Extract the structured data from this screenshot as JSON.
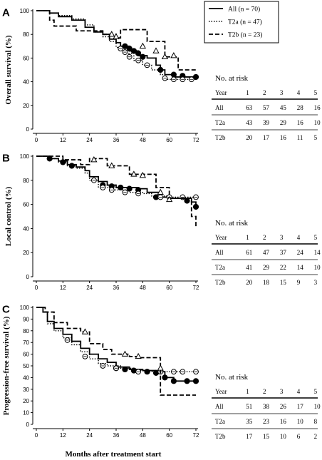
{
  "legend": [
    {
      "label": "All  (n = 70)",
      "style": "solid"
    },
    {
      "label": "T2a  (n = 47)",
      "style": "dotted"
    },
    {
      "label": "T2b  (n = 23)",
      "style": "dashed"
    }
  ],
  "chart_data": [
    {
      "type": "line",
      "panel": "A",
      "ylabel": "Overall survival (%)",
      "xlabel": "",
      "xlim": [
        0,
        72
      ],
      "ylim": [
        0,
        100
      ],
      "xticks": [
        "0",
        "12",
        "24",
        "36",
        "48",
        "60",
        "72"
      ],
      "yticks": [
        "0",
        "20",
        "40",
        "60",
        "80",
        "100"
      ],
      "series": [
        {
          "name": "All  (n = 70)",
          "style": "solid",
          "steps": [
            [
              0,
              100
            ],
            [
              4,
              100
            ],
            [
              6,
              98
            ],
            [
              10,
              95
            ],
            [
              16,
              92
            ],
            [
              22,
              86
            ],
            [
              26,
              82
            ],
            [
              30,
              80
            ],
            [
              33,
              76
            ],
            [
              36,
              73
            ],
            [
              38,
              70
            ],
            [
              42,
              66
            ],
            [
              46,
              62
            ],
            [
              50,
              60
            ],
            [
              54,
              54
            ],
            [
              56,
              50
            ],
            [
              58,
              46
            ],
            [
              62,
              44
            ],
            [
              66,
              44
            ],
            [
              72,
              44
            ]
          ],
          "censors": [
            [
              40,
              70
            ],
            [
              42,
              68
            ],
            [
              44,
              66
            ],
            [
              46,
              64
            ],
            [
              48,
              61
            ],
            [
              56,
              50
            ],
            [
              62,
              46
            ],
            [
              66,
              45
            ],
            [
              72,
              44
            ]
          ]
        },
        {
          "name": "T2a  (n = 47)",
          "style": "dotted",
          "steps": [
            [
              0,
              100
            ],
            [
              4,
              100
            ],
            [
              6,
              98
            ],
            [
              10,
              96
            ],
            [
              16,
              93
            ],
            [
              22,
              88
            ],
            [
              26,
              82
            ],
            [
              30,
              78
            ],
            [
              33,
              74
            ],
            [
              36,
              69
            ],
            [
              40,
              64
            ],
            [
              44,
              58
            ],
            [
              48,
              54
            ],
            [
              52,
              50
            ],
            [
              56,
              46
            ],
            [
              58,
              42
            ],
            [
              72,
              42
            ]
          ],
          "censors": [
            [
              38,
              68
            ],
            [
              40,
              65
            ],
            [
              42,
              61
            ],
            [
              46,
              58
            ],
            [
              50,
              54
            ],
            [
              58,
              43
            ],
            [
              62,
              42
            ],
            [
              66,
              42
            ],
            [
              70,
              42
            ]
          ]
        },
        {
          "name": "T2b  (n = 23)",
          "style": "dashed",
          "steps": [
            [
              0,
              100
            ],
            [
              4,
              100
            ],
            [
              6,
              92
            ],
            [
              8,
              87
            ],
            [
              14,
              87
            ],
            [
              18,
              83
            ],
            [
              24,
              83
            ],
            [
              30,
              80
            ],
            [
              34,
              80
            ],
            [
              36,
              77
            ],
            [
              38,
              84
            ],
            [
              48,
              84
            ],
            [
              50,
              74
            ],
            [
              54,
              74
            ],
            [
              58,
              61
            ],
            [
              62,
              61
            ],
            [
              64,
              50
            ],
            [
              72,
              50
            ]
          ],
          "censors": [
            [
              34,
              80
            ],
            [
              36,
              78
            ],
            [
              48,
              70
            ],
            [
              54,
              66
            ],
            [
              58,
              61
            ],
            [
              62,
              62
            ]
          ]
        }
      ]
    },
    {
      "type": "line",
      "panel": "B",
      "ylabel": "Local control (%)",
      "xlabel": "",
      "xlim": [
        0,
        72
      ],
      "ylim": [
        0,
        100
      ],
      "xticks": [
        "0",
        "12",
        "24",
        "36",
        "48",
        "60",
        "72"
      ],
      "yticks": [
        "0",
        "20",
        "40",
        "60",
        "80",
        "100"
      ],
      "series": [
        {
          "name": "All  (n = 70)",
          "style": "solid",
          "steps": [
            [
              0,
              100
            ],
            [
              6,
              98
            ],
            [
              10,
              96
            ],
            [
              14,
              93
            ],
            [
              18,
              91
            ],
            [
              22,
              88
            ],
            [
              24,
              83
            ],
            [
              28,
              79
            ],
            [
              32,
              76
            ],
            [
              36,
              74
            ],
            [
              46,
              73
            ],
            [
              50,
              70
            ],
            [
              56,
              66
            ],
            [
              60,
              65
            ],
            [
              66,
              65
            ],
            [
              70,
              62
            ],
            [
              72,
              58
            ]
          ],
          "censors": [
            [
              6,
              98
            ],
            [
              12,
              95
            ],
            [
              16,
              92
            ],
            [
              30,
              76
            ],
            [
              34,
              75
            ],
            [
              38,
              74
            ],
            [
              42,
              73
            ],
            [
              46,
              72
            ],
            [
              54,
              66
            ],
            [
              68,
              63
            ],
            [
              72,
              58
            ]
          ]
        },
        {
          "name": "T2a  (n = 47)",
          "style": "dotted",
          "steps": [
            [
              0,
              100
            ],
            [
              6,
              98
            ],
            [
              10,
              95
            ],
            [
              14,
              92
            ],
            [
              18,
              90
            ],
            [
              22,
              86
            ],
            [
              24,
              80
            ],
            [
              28,
              74
            ],
            [
              34,
              72
            ],
            [
              42,
              70
            ],
            [
              48,
              69
            ],
            [
              52,
              67
            ],
            [
              60,
              66
            ],
            [
              72,
              66
            ]
          ],
          "censors": [
            [
              26,
              80
            ],
            [
              30,
              74
            ],
            [
              34,
              72
            ],
            [
              40,
              70
            ],
            [
              46,
              69
            ],
            [
              56,
              66
            ],
            [
              60,
              66
            ],
            [
              66,
              66
            ],
            [
              72,
              66
            ]
          ]
        },
        {
          "name": "T2b  (n = 23)",
          "style": "dashed",
          "steps": [
            [
              0,
              100
            ],
            [
              8,
              100
            ],
            [
              12,
              97
            ],
            [
              20,
              93
            ],
            [
              24,
              98
            ],
            [
              30,
              98
            ],
            [
              32,
              92
            ],
            [
              40,
              92
            ],
            [
              42,
              85
            ],
            [
              50,
              85
            ],
            [
              54,
              74
            ],
            [
              60,
              65
            ],
            [
              68,
              65
            ],
            [
              70,
              50
            ],
            [
              72,
              41
            ]
          ],
          "censors": [
            [
              26,
              97
            ],
            [
              34,
              92
            ],
            [
              44,
              85
            ],
            [
              48,
              84
            ],
            [
              56,
              70
            ],
            [
              60,
              64
            ]
          ]
        }
      ]
    },
    {
      "type": "line",
      "panel": "C",
      "ylabel": "Progression-free survival (%)",
      "xlabel": "Months after treatment start",
      "xlim": [
        0,
        72
      ],
      "ylim": [
        0,
        100
      ],
      "xticks": [
        "0",
        "12",
        "24",
        "36",
        "48",
        "60",
        "72"
      ],
      "yticks": [
        "0",
        "10",
        "20",
        "30",
        "40",
        "50",
        "60",
        "70",
        "80",
        "90",
        "100"
      ],
      "series": [
        {
          "name": "All  (n = 70)",
          "style": "solid",
          "steps": [
            [
              0,
              100
            ],
            [
              3,
              96
            ],
            [
              5,
              88
            ],
            [
              8,
              82
            ],
            [
              12,
              77
            ],
            [
              16,
              71
            ],
            [
              20,
              65
            ],
            [
              24,
              60
            ],
            [
              28,
              56
            ],
            [
              32,
              53
            ],
            [
              36,
              49
            ],
            [
              42,
              47
            ],
            [
              48,
              46
            ],
            [
              54,
              45
            ],
            [
              58,
              40
            ],
            [
              62,
              37
            ],
            [
              72,
              37
            ]
          ],
          "censors": [
            [
              36,
              48
            ],
            [
              40,
              47
            ],
            [
              44,
              46
            ],
            [
              50,
              45
            ],
            [
              54,
              44
            ],
            [
              58,
              40
            ],
            [
              62,
              37
            ],
            [
              68,
              37
            ],
            [
              72,
              37
            ]
          ]
        },
        {
          "name": "T2a  (n = 47)",
          "style": "dotted",
          "steps": [
            [
              0,
              100
            ],
            [
              3,
              96
            ],
            [
              5,
              86
            ],
            [
              8,
              80
            ],
            [
              12,
              74
            ],
            [
              16,
              68
            ],
            [
              20,
              62
            ],
            [
              24,
              56
            ],
            [
              28,
              52
            ],
            [
              32,
              50
            ],
            [
              38,
              48
            ],
            [
              44,
              46
            ],
            [
              50,
              45
            ],
            [
              56,
              45
            ],
            [
              72,
              45
            ]
          ],
          "censors": [
            [
              14,
              72
            ],
            [
              22,
              58
            ],
            [
              30,
              50
            ],
            [
              36,
              48
            ],
            [
              46,
              45
            ],
            [
              56,
              45
            ],
            [
              62,
              45
            ],
            [
              66,
              45
            ],
            [
              72,
              45
            ]
          ]
        },
        {
          "name": "T2b  (n = 23)",
          "style": "dashed",
          "steps": [
            [
              0,
              100
            ],
            [
              4,
              96
            ],
            [
              8,
              87
            ],
            [
              14,
              82
            ],
            [
              20,
              79
            ],
            [
              24,
              69
            ],
            [
              30,
              64
            ],
            [
              34,
              60
            ],
            [
              42,
              58
            ],
            [
              46,
              57
            ],
            [
              56,
              25
            ],
            [
              72,
              25
            ]
          ],
          "censors": [
            [
              22,
              79
            ],
            [
              40,
              60
            ],
            [
              46,
              58
            ],
            [
              56,
              48
            ]
          ]
        }
      ]
    }
  ],
  "risk_tables": [
    {
      "title": "No. at risk",
      "header": [
        "Year",
        "1",
        "2",
        "3",
        "4",
        "5"
      ],
      "rows": [
        [
          "All",
          "63",
          "57",
          "45",
          "28",
          "16"
        ],
        [
          "T2a",
          "43",
          "39",
          "29",
          "16",
          "10"
        ],
        [
          "T2b",
          "20",
          "17",
          "16",
          "11",
          "5"
        ]
      ]
    },
    {
      "title": "No. at risk",
      "header": [
        "Year",
        "1",
        "2",
        "3",
        "4",
        "5"
      ],
      "rows": [
        [
          "All",
          "61",
          "47",
          "37",
          "24",
          "14"
        ],
        [
          "T2a",
          "41",
          "29",
          "22",
          "14",
          "10"
        ],
        [
          "T2b",
          "20",
          "18",
          "15",
          "9",
          "3"
        ]
      ]
    },
    {
      "title": "No. at risk",
      "header": [
        "Year",
        "1",
        "2",
        "3",
        "4",
        "5"
      ],
      "rows": [
        [
          "All",
          "51",
          "38",
          "26",
          "17",
          "10"
        ],
        [
          "T2a",
          "35",
          "23",
          "16",
          "10",
          "8"
        ],
        [
          "T2b",
          "17",
          "15",
          "10",
          "6",
          "2"
        ]
      ]
    }
  ]
}
